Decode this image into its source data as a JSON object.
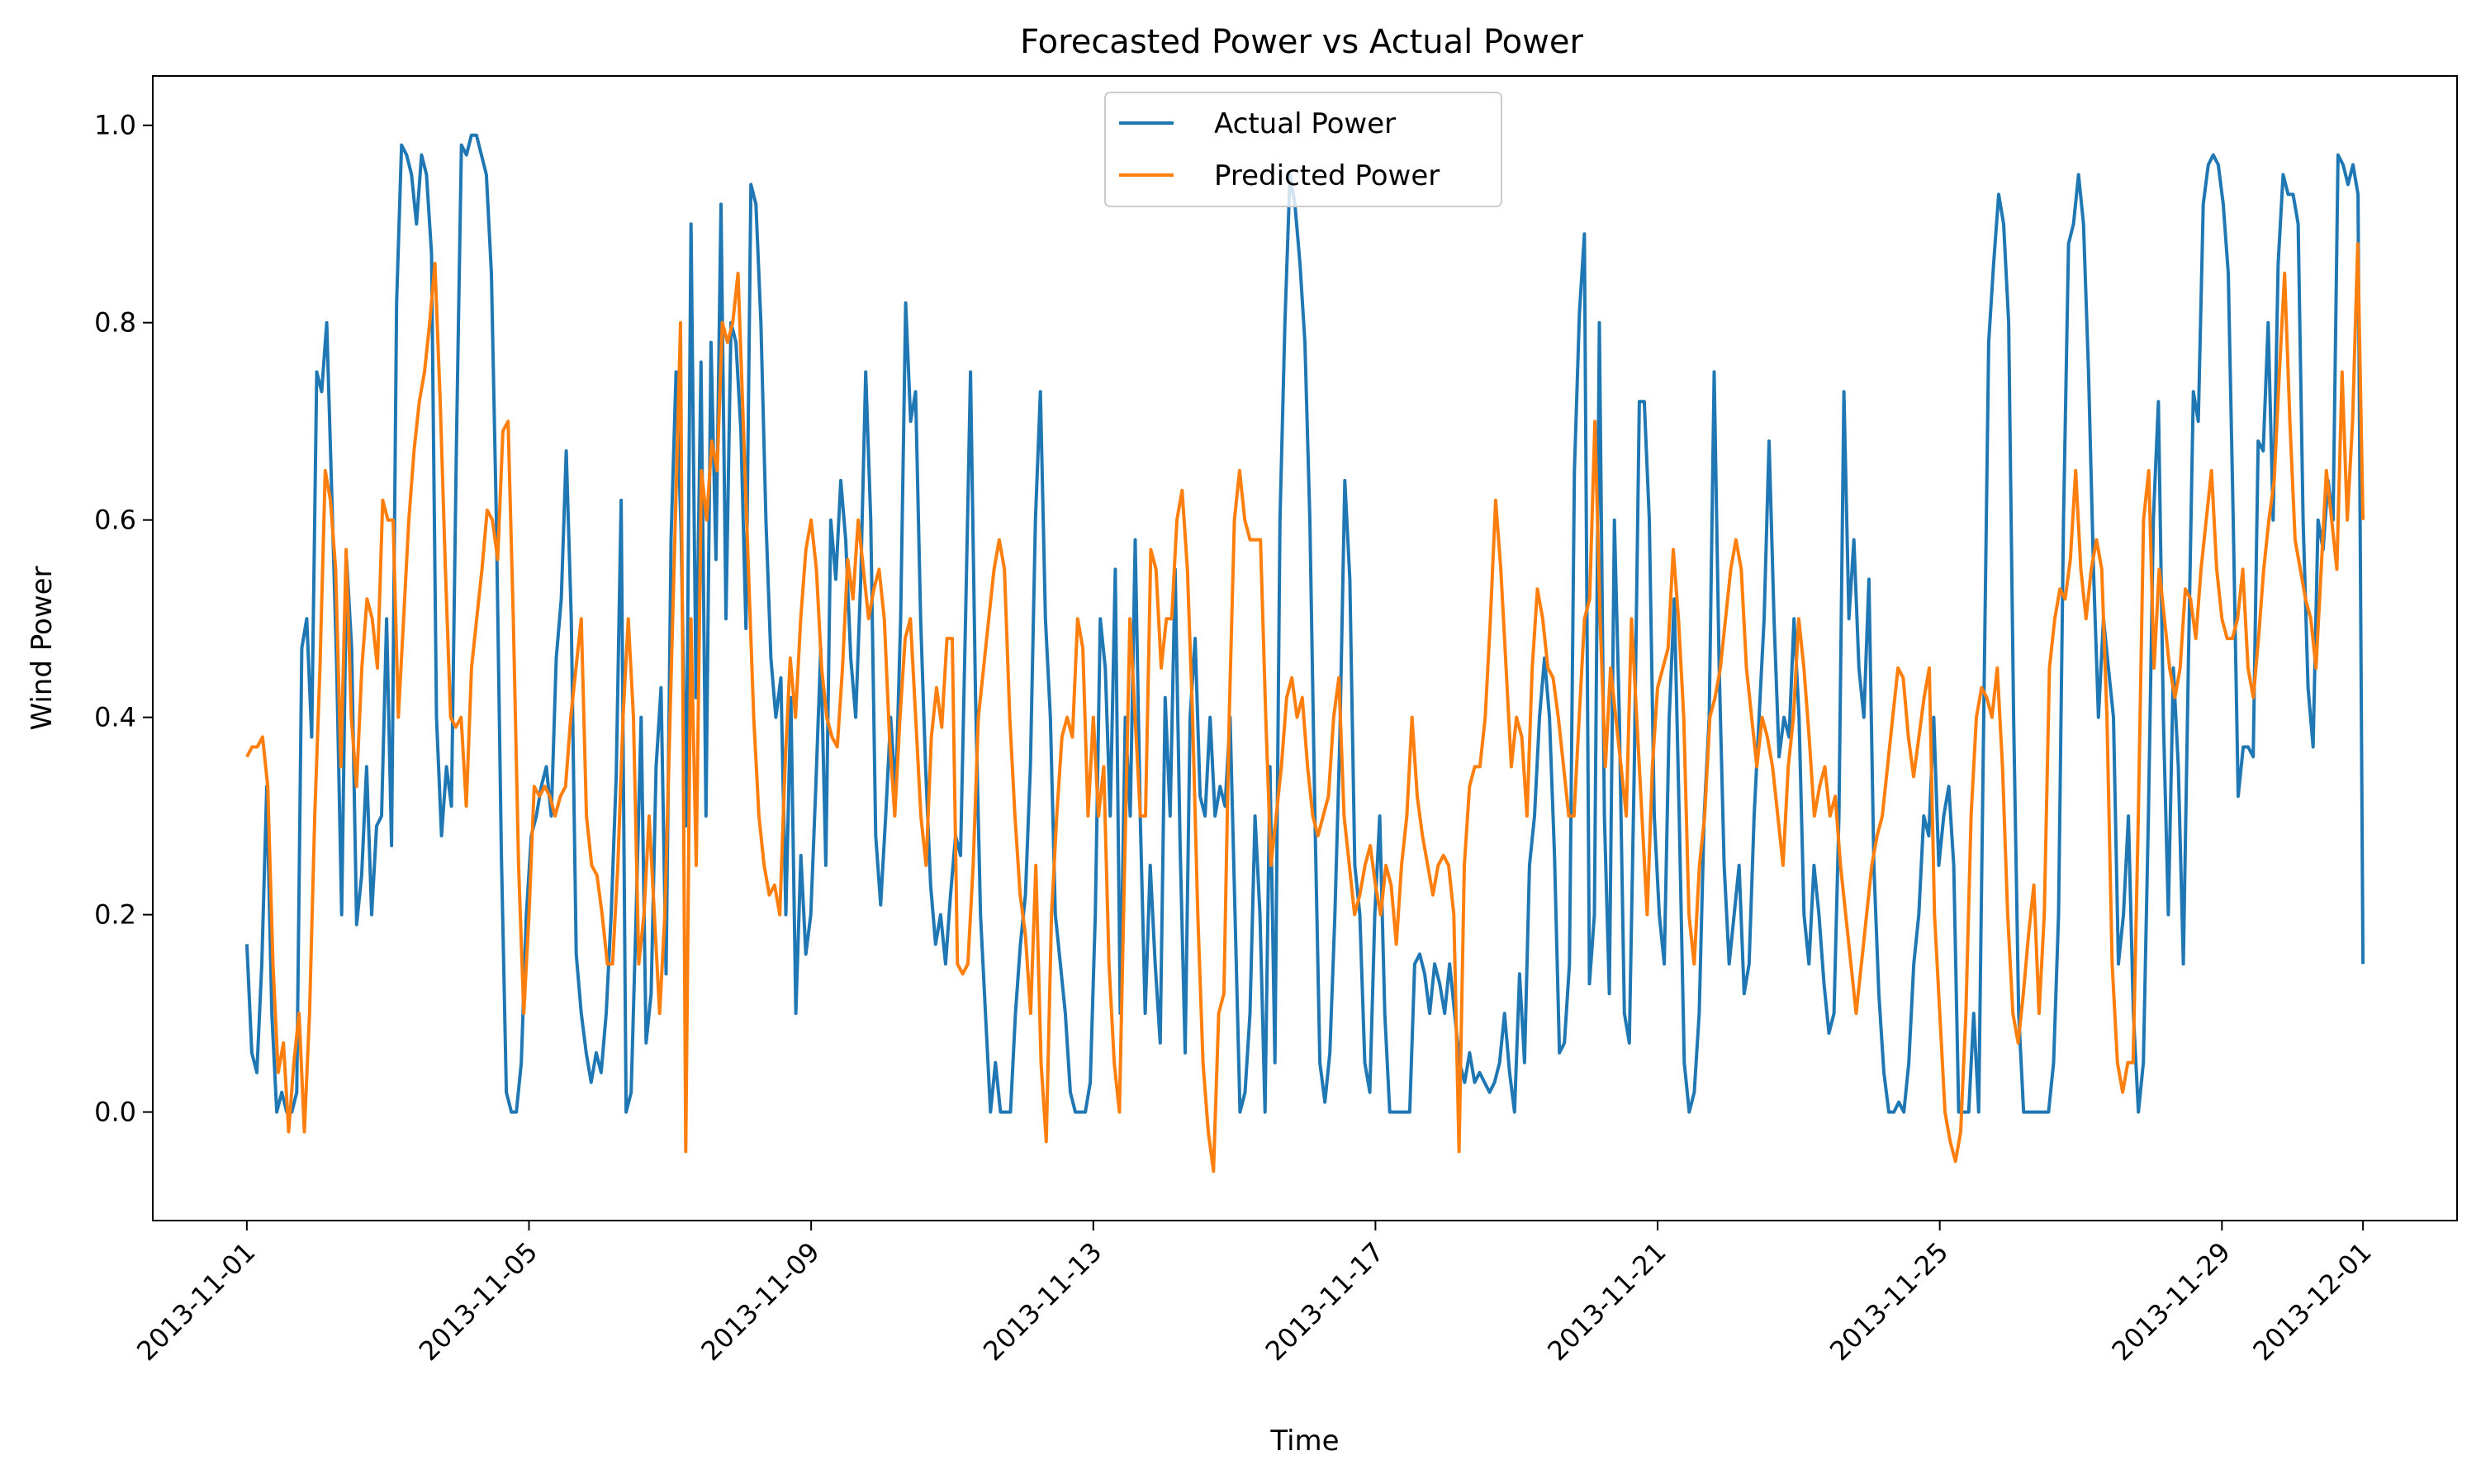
{
  "chart_data": {
    "type": "line",
    "title": "Forecasted Power vs Actual Power",
    "xlabel": "Time",
    "ylabel": "Wind Power",
    "x_start": "2013-11-01",
    "x_end": "2013-12-01",
    "xlim": [
      "2013-10-30T16:00",
      "2013-12-02T08:00"
    ],
    "ylim": [
      -0.11,
      1.05
    ],
    "x_ticks": [
      "2013-11-01",
      "2013-11-05",
      "2013-11-09",
      "2013-11-13",
      "2013-11-17",
      "2013-11-21",
      "2013-11-25",
      "2013-11-29",
      "2013-12-01"
    ],
    "y_ticks": [
      0.0,
      0.2,
      0.4,
      0.6,
      0.8,
      1.0
    ],
    "y_tick_labels": [
      "0.0",
      "0.2",
      "0.4",
      "0.6",
      "0.8",
      "1.0"
    ],
    "grid": false,
    "legend_position": "top-center",
    "series": [
      {
        "name": "Actual Power",
        "color": "#1f77b4",
        "values": [
          0.17,
          0.06,
          0.04,
          0.15,
          0.33,
          0.1,
          0.0,
          0.02,
          0.0,
          0.0,
          0.02,
          0.47,
          0.5,
          0.38,
          0.75,
          0.73,
          0.8,
          0.63,
          0.45,
          0.2,
          0.56,
          0.47,
          0.19,
          0.24,
          0.35,
          0.2,
          0.29,
          0.3,
          0.5,
          0.27,
          0.82,
          0.98,
          0.97,
          0.95,
          0.9,
          0.97,
          0.95,
          0.87,
          0.4,
          0.28,
          0.35,
          0.31,
          0.68,
          0.98,
          0.97,
          0.99,
          0.99,
          0.97,
          0.95,
          0.85,
          0.6,
          0.26,
          0.02,
          0.0,
          0.0,
          0.05,
          0.2,
          0.28,
          0.3,
          0.33,
          0.35,
          0.3,
          0.46,
          0.52,
          0.67,
          0.5,
          0.16,
          0.1,
          0.06,
          0.03,
          0.06,
          0.04,
          0.1,
          0.2,
          0.34,
          0.62,
          0.0,
          0.02,
          0.2,
          0.4,
          0.07,
          0.12,
          0.35,
          0.43,
          0.14,
          0.58,
          0.75,
          0.59,
          0.29,
          0.9,
          0.42,
          0.76,
          0.3,
          0.78,
          0.56,
          0.92,
          0.5,
          0.8,
          0.78,
          0.69,
          0.49,
          0.94,
          0.92,
          0.8,
          0.6,
          0.46,
          0.4,
          0.44,
          0.2,
          0.42,
          0.1,
          0.26,
          0.16,
          0.2,
          0.33,
          0.47,
          0.25,
          0.6,
          0.54,
          0.64,
          0.58,
          0.46,
          0.4,
          0.54,
          0.75,
          0.6,
          0.28,
          0.21,
          0.3,
          0.4,
          0.32,
          0.5,
          0.82,
          0.7,
          0.73,
          0.5,
          0.35,
          0.23,
          0.17,
          0.2,
          0.15,
          0.22,
          0.28,
          0.26,
          0.5,
          0.75,
          0.42,
          0.2,
          0.1,
          0.0,
          0.05,
          0.0,
          0.0,
          0.0,
          0.1,
          0.17,
          0.22,
          0.35,
          0.6,
          0.73,
          0.5,
          0.4,
          0.2,
          0.15,
          0.1,
          0.02,
          0.0,
          0.0,
          0.0,
          0.03,
          0.2,
          0.5,
          0.45,
          0.3,
          0.55,
          0.1,
          0.4,
          0.3,
          0.58,
          0.3,
          0.1,
          0.25,
          0.15,
          0.07,
          0.42,
          0.3,
          0.55,
          0.27,
          0.06,
          0.4,
          0.48,
          0.32,
          0.3,
          0.4,
          0.3,
          0.33,
          0.31,
          0.4,
          0.2,
          0.0,
          0.02,
          0.1,
          0.3,
          0.2,
          0.0,
          0.35,
          0.05,
          0.6,
          0.8,
          0.95,
          0.92,
          0.86,
          0.78,
          0.6,
          0.3,
          0.05,
          0.01,
          0.06,
          0.2,
          0.38,
          0.64,
          0.54,
          0.25,
          0.2,
          0.05,
          0.02,
          0.2,
          0.3,
          0.1,
          0.0,
          0.0,
          0.0,
          0.0,
          0.0,
          0.15,
          0.16,
          0.14,
          0.1,
          0.15,
          0.13,
          0.1,
          0.15,
          0.1,
          0.05,
          0.03,
          0.06,
          0.03,
          0.04,
          0.03,
          0.02,
          0.03,
          0.05,
          0.1,
          0.04,
          0.0,
          0.14,
          0.05,
          0.25,
          0.3,
          0.4,
          0.46,
          0.4,
          0.26,
          0.06,
          0.07,
          0.15,
          0.65,
          0.81,
          0.89,
          0.13,
          0.2,
          0.8,
          0.3,
          0.12,
          0.6,
          0.4,
          0.1,
          0.07,
          0.35,
          0.72,
          0.72,
          0.6,
          0.3,
          0.2,
          0.15,
          0.4,
          0.52,
          0.3,
          0.05,
          0.0,
          0.02,
          0.1,
          0.3,
          0.4,
          0.75,
          0.45,
          0.25,
          0.15,
          0.2,
          0.25,
          0.12,
          0.15,
          0.3,
          0.4,
          0.5,
          0.68,
          0.5,
          0.36,
          0.4,
          0.38,
          0.5,
          0.4,
          0.2,
          0.15,
          0.25,
          0.2,
          0.13,
          0.08,
          0.1,
          0.3,
          0.73,
          0.5,
          0.58,
          0.45,
          0.4,
          0.54,
          0.25,
          0.12,
          0.04,
          0.0,
          0.0,
          0.01,
          0.0,
          0.05,
          0.15,
          0.2,
          0.3,
          0.28,
          0.4,
          0.25,
          0.3,
          0.33,
          0.25,
          0.0,
          0.0,
          0.0,
          0.1,
          0.0,
          0.4,
          0.78,
          0.86,
          0.93,
          0.9,
          0.8,
          0.4,
          0.1,
          0.0,
          0.0,
          0.0,
          0.0,
          0.0,
          0.0,
          0.05,
          0.2,
          0.6,
          0.88,
          0.9,
          0.95,
          0.9,
          0.75,
          0.55,
          0.4,
          0.5,
          0.45,
          0.4,
          0.15,
          0.2,
          0.3,
          0.1,
          0.0,
          0.05,
          0.3,
          0.6,
          0.72,
          0.4,
          0.2,
          0.45,
          0.35,
          0.15,
          0.45,
          0.73,
          0.7,
          0.92,
          0.96,
          0.97,
          0.96,
          0.92,
          0.85,
          0.6,
          0.32,
          0.37,
          0.37,
          0.36,
          0.68,
          0.67,
          0.8,
          0.6,
          0.86,
          0.95,
          0.93,
          0.93,
          0.9,
          0.6,
          0.43,
          0.37,
          0.6,
          0.57,
          0.64,
          0.6,
          0.97,
          0.96,
          0.94,
          0.96,
          0.93,
          0.15
        ]
      },
      {
        "name": "Predicted Power",
        "color": "#ff7f0e",
        "values": [
          0.36,
          0.37,
          0.37,
          0.38,
          0.33,
          0.15,
          0.04,
          0.07,
          -0.02,
          0.05,
          0.1,
          -0.02,
          0.1,
          0.3,
          0.45,
          0.65,
          0.62,
          0.55,
          0.35,
          0.57,
          0.4,
          0.33,
          0.45,
          0.52,
          0.5,
          0.45,
          0.62,
          0.6,
          0.6,
          0.4,
          0.5,
          0.6,
          0.67,
          0.72,
          0.75,
          0.8,
          0.86,
          0.72,
          0.55,
          0.4,
          0.39,
          0.4,
          0.31,
          0.45,
          0.5,
          0.55,
          0.61,
          0.6,
          0.56,
          0.69,
          0.7,
          0.5,
          0.25,
          0.1,
          0.2,
          0.33,
          0.32,
          0.33,
          0.32,
          0.3,
          0.32,
          0.33,
          0.4,
          0.45,
          0.5,
          0.3,
          0.25,
          0.24,
          0.2,
          0.15,
          0.15,
          0.25,
          0.4,
          0.5,
          0.4,
          0.15,
          0.2,
          0.3,
          0.2,
          0.1,
          0.2,
          0.4,
          0.6,
          0.8,
          -0.04,
          0.5,
          0.25,
          0.65,
          0.6,
          0.68,
          0.65,
          0.8,
          0.78,
          0.8,
          0.85,
          0.7,
          0.55,
          0.4,
          0.3,
          0.25,
          0.22,
          0.23,
          0.2,
          0.35,
          0.46,
          0.4,
          0.5,
          0.57,
          0.6,
          0.55,
          0.45,
          0.4,
          0.38,
          0.37,
          0.45,
          0.56,
          0.52,
          0.6,
          0.55,
          0.5,
          0.53,
          0.55,
          0.5,
          0.38,
          0.3,
          0.4,
          0.48,
          0.5,
          0.4,
          0.3,
          0.25,
          0.38,
          0.43,
          0.39,
          0.48,
          0.48,
          0.15,
          0.14,
          0.15,
          0.25,
          0.4,
          0.45,
          0.5,
          0.55,
          0.58,
          0.55,
          0.4,
          0.3,
          0.22,
          0.18,
          0.1,
          0.25,
          0.05,
          -0.03,
          0.2,
          0.3,
          0.38,
          0.4,
          0.38,
          0.5,
          0.47,
          0.3,
          0.4,
          0.3,
          0.35,
          0.15,
          0.05,
          0.0,
          0.25,
          0.5,
          0.4,
          0.3,
          0.3,
          0.57,
          0.55,
          0.45,
          0.5,
          0.5,
          0.6,
          0.63,
          0.55,
          0.4,
          0.2,
          0.05,
          -0.02,
          -0.06,
          0.1,
          0.12,
          0.4,
          0.6,
          0.65,
          0.6,
          0.58,
          0.58,
          0.58,
          0.4,
          0.25,
          0.3,
          0.35,
          0.42,
          0.44,
          0.4,
          0.42,
          0.35,
          0.3,
          0.28,
          0.3,
          0.32,
          0.4,
          0.44,
          0.3,
          0.25,
          0.2,
          0.22,
          0.25,
          0.27,
          0.23,
          0.2,
          0.25,
          0.23,
          0.17,
          0.25,
          0.3,
          0.4,
          0.32,
          0.28,
          0.25,
          0.22,
          0.25,
          0.26,
          0.25,
          0.2,
          -0.04,
          0.25,
          0.33,
          0.35,
          0.35,
          0.4,
          0.5,
          0.62,
          0.55,
          0.45,
          0.35,
          0.4,
          0.38,
          0.3,
          0.45,
          0.53,
          0.5,
          0.45,
          0.44,
          0.4,
          0.35,
          0.3,
          0.3,
          0.4,
          0.5,
          0.52,
          0.7,
          0.5,
          0.35,
          0.45,
          0.4,
          0.35,
          0.3,
          0.5,
          0.4,
          0.3,
          0.2,
          0.35,
          0.43,
          0.45,
          0.47,
          0.57,
          0.5,
          0.4,
          0.2,
          0.15,
          0.25,
          0.3,
          0.4,
          0.42,
          0.45,
          0.5,
          0.55,
          0.58,
          0.55,
          0.45,
          0.4,
          0.35,
          0.4,
          0.38,
          0.35,
          0.3,
          0.25,
          0.35,
          0.4,
          0.5,
          0.45,
          0.38,
          0.3,
          0.33,
          0.35,
          0.3,
          0.32,
          0.25,
          0.2,
          0.15,
          0.1,
          0.15,
          0.2,
          0.25,
          0.28,
          0.3,
          0.35,
          0.4,
          0.45,
          0.44,
          0.38,
          0.34,
          0.38,
          0.42,
          0.45,
          0.2,
          0.1,
          0.0,
          -0.03,
          -0.05,
          -0.02,
          0.1,
          0.3,
          0.4,
          0.43,
          0.42,
          0.4,
          0.45,
          0.35,
          0.2,
          0.1,
          0.07,
          0.12,
          0.18,
          0.23,
          0.1,
          0.2,
          0.45,
          0.5,
          0.53,
          0.52,
          0.56,
          0.65,
          0.55,
          0.5,
          0.55,
          0.58,
          0.55,
          0.4,
          0.15,
          0.05,
          0.02,
          0.05,
          0.05,
          0.3,
          0.6,
          0.65,
          0.45,
          0.55,
          0.5,
          0.45,
          0.42,
          0.45,
          0.53,
          0.52,
          0.48,
          0.55,
          0.6,
          0.65,
          0.55,
          0.5,
          0.48,
          0.48,
          0.5,
          0.55,
          0.45,
          0.42,
          0.48,
          0.55,
          0.6,
          0.64,
          0.75,
          0.85,
          0.7,
          0.58,
          0.55,
          0.52,
          0.5,
          0.45,
          0.55,
          0.65,
          0.6,
          0.55,
          0.75,
          0.6,
          0.7,
          0.88,
          0.6
        ]
      }
    ]
  }
}
